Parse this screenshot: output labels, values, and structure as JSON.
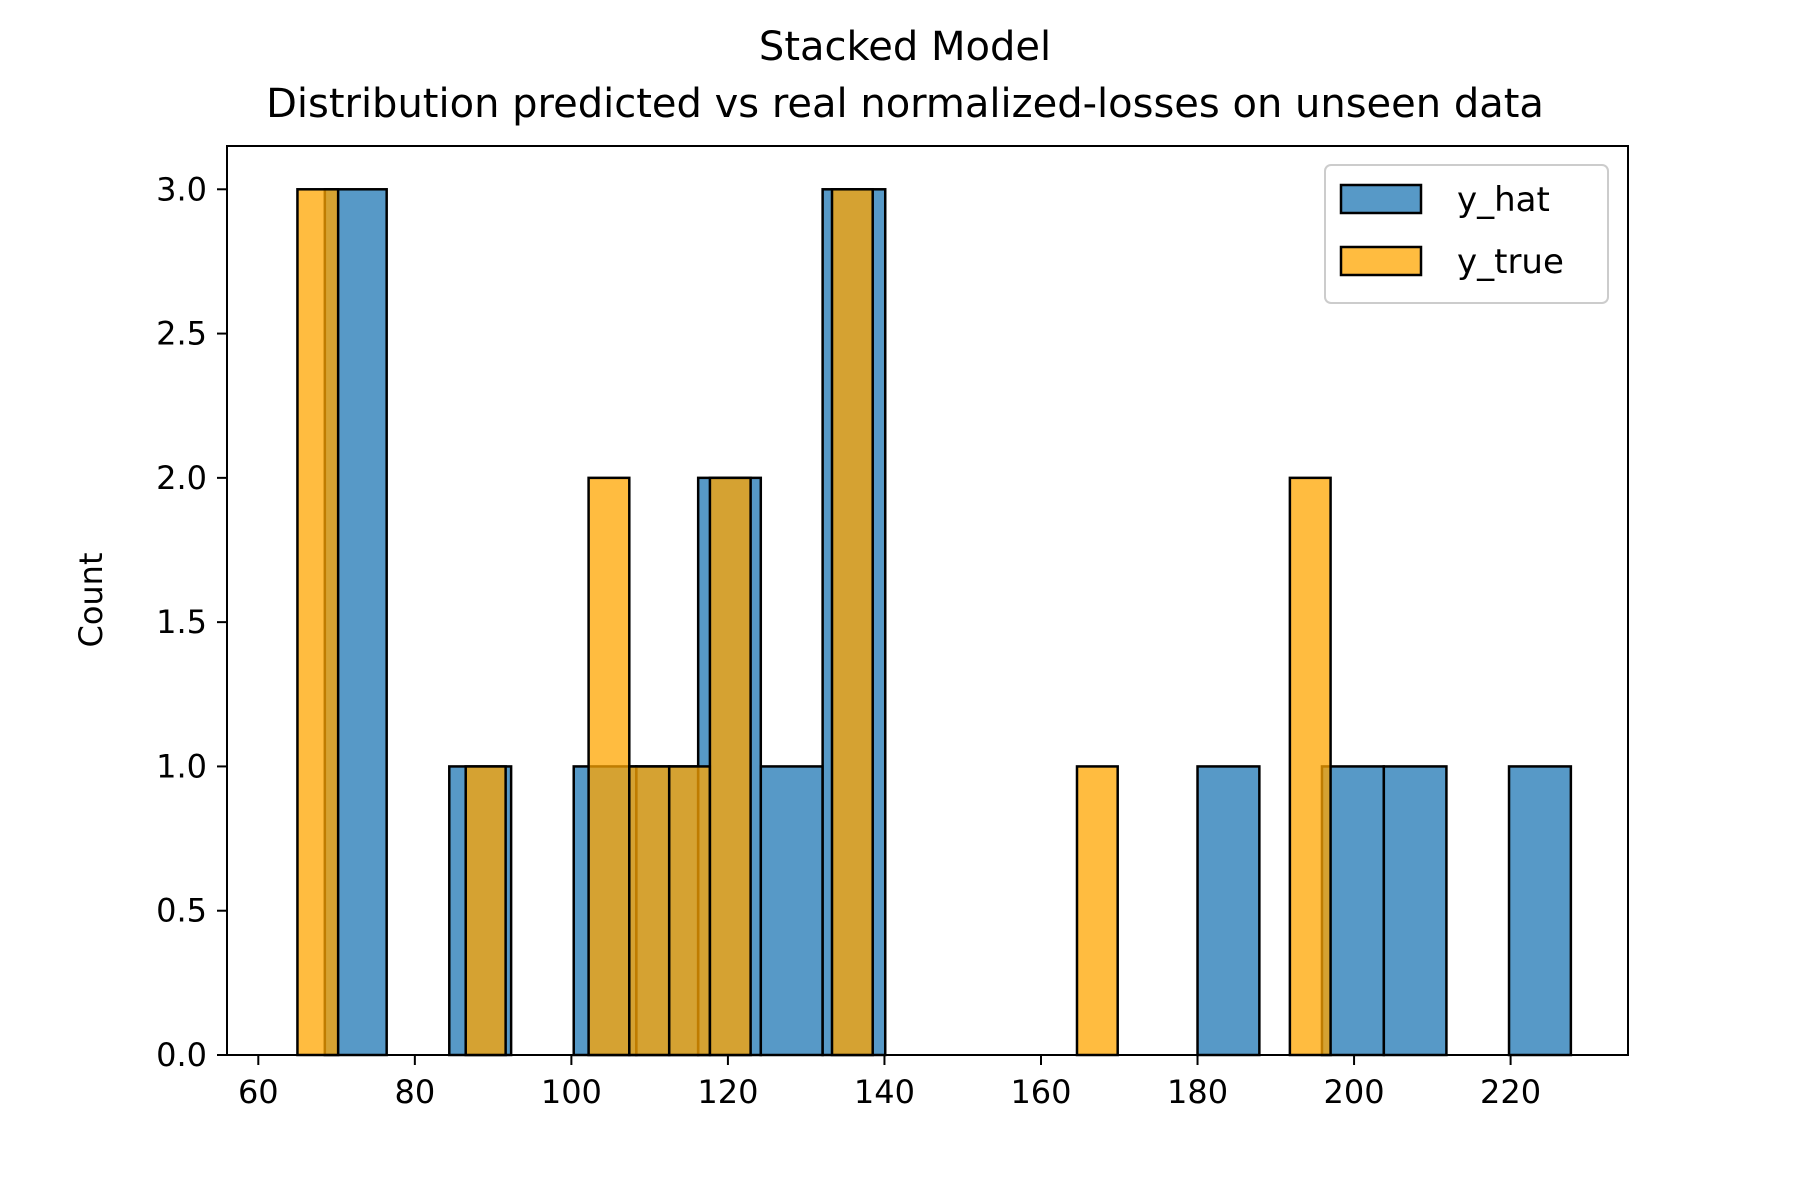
{
  "chart_data": {
    "type": "bar",
    "subtype": "histogram",
    "title": "Stacked Model",
    "subtitle": "Distribution predicted vs real normalized-losses on unseen data",
    "xlabel": "",
    "ylabel": "Count",
    "xlim": [
      56,
      235
    ],
    "ylim": [
      0,
      3.15
    ],
    "xticks": [
      60,
      80,
      100,
      120,
      140,
      160,
      180,
      200,
      220
    ],
    "xtick_labels": [
      "60",
      "80",
      "100",
      "120",
      "140",
      "160",
      "180",
      "200",
      "220"
    ],
    "yticks": [
      0.0,
      0.5,
      1.0,
      1.5,
      2.0,
      2.5,
      3.0
    ],
    "ytick_labels": [
      "0.0",
      "0.5",
      "1.0",
      "1.5",
      "2.0",
      "2.5",
      "3.0"
    ],
    "grid": false,
    "legend_position": "top-right",
    "series": [
      {
        "name": "y_hat",
        "color": "#1f77b4",
        "bins": [
          {
            "start": 68.5,
            "end": 76.4,
            "count": 3
          },
          {
            "start": 84.4,
            "end": 92.3,
            "count": 1
          },
          {
            "start": 100.3,
            "end": 108.3,
            "count": 1
          },
          {
            "start": 108.3,
            "end": 116.2,
            "count": 1
          },
          {
            "start": 116.2,
            "end": 124.2,
            "count": 2
          },
          {
            "start": 124.2,
            "end": 132.1,
            "count": 1
          },
          {
            "start": 132.1,
            "end": 140.1,
            "count": 3
          },
          {
            "start": 180.0,
            "end": 187.9,
            "count": 1
          },
          {
            "start": 195.9,
            "end": 203.8,
            "count": 1
          },
          {
            "start": 203.8,
            "end": 211.8,
            "count": 1
          },
          {
            "start": 219.8,
            "end": 227.7,
            "count": 1
          }
        ]
      },
      {
        "name": "y_true",
        "color": "#ffa500",
        "bins": [
          {
            "start": 65.0,
            "end": 70.2,
            "count": 3
          },
          {
            "start": 86.5,
            "end": 91.6,
            "count": 1
          },
          {
            "start": 102.2,
            "end": 107.4,
            "count": 2
          },
          {
            "start": 107.4,
            "end": 112.5,
            "count": 1
          },
          {
            "start": 112.5,
            "end": 117.7,
            "count": 1
          },
          {
            "start": 117.7,
            "end": 122.9,
            "count": 2
          },
          {
            "start": 133.3,
            "end": 138.5,
            "count": 3
          },
          {
            "start": 164.6,
            "end": 169.8,
            "count": 1
          },
          {
            "start": 191.8,
            "end": 197.0,
            "count": 2
          }
        ]
      }
    ]
  }
}
